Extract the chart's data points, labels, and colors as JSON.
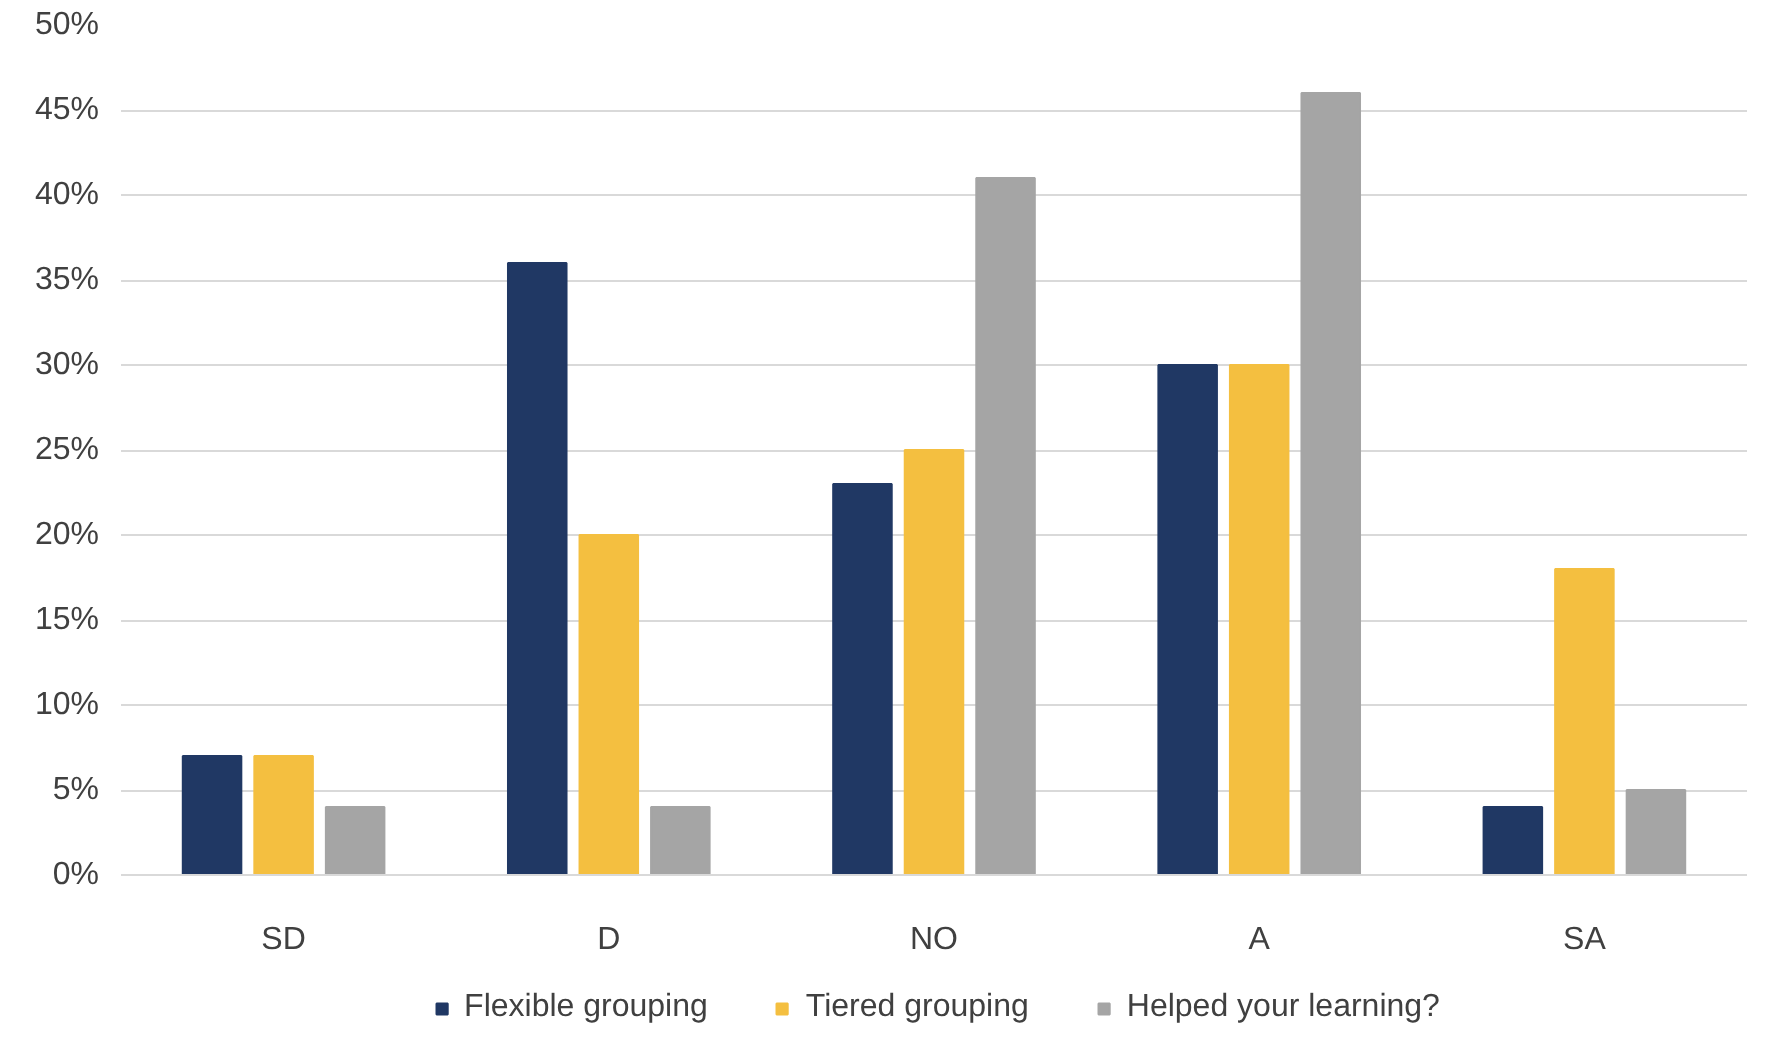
{
  "chart_data": {
    "type": "bar",
    "categories": [
      "SD",
      "D",
      "NO",
      "A",
      "SA"
    ],
    "series": [
      {
        "name": "Flexible grouping",
        "color": "#203864",
        "values": [
          7,
          36,
          23,
          30,
          4
        ]
      },
      {
        "name": "Tiered grouping",
        "color": "#f4bf40",
        "values": [
          7,
          20,
          25,
          30,
          18
        ]
      },
      {
        "name": "Helped your learning?",
        "color": "#a5a5a5",
        "values": [
          4,
          4,
          41,
          46,
          5
        ]
      }
    ],
    "ylim": [
      0,
      50
    ],
    "yticks": [
      {
        "value": 0,
        "label": "0%"
      },
      {
        "value": 5,
        "label": "5%"
      },
      {
        "value": 10,
        "label": "10%"
      },
      {
        "value": 15,
        "label": "15%"
      },
      {
        "value": 20,
        "label": "20%"
      },
      {
        "value": 25,
        "label": "25%"
      },
      {
        "value": 30,
        "label": "30%"
      },
      {
        "value": 35,
        "label": "35%"
      },
      {
        "value": 40,
        "label": "40%"
      },
      {
        "value": 45,
        "label": "45%"
      },
      {
        "value": 50,
        "label": "50%"
      }
    ],
    "grid": "y",
    "legend": "bottom"
  }
}
